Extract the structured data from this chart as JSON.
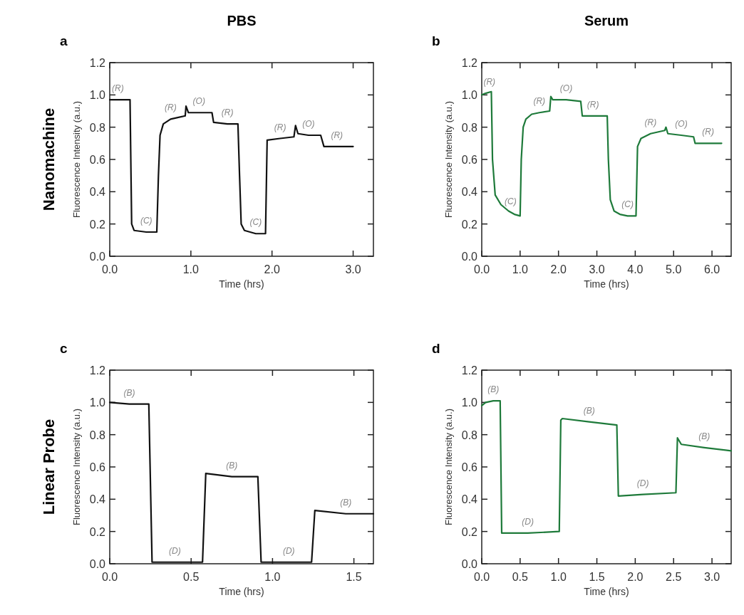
{
  "chart_data": [
    {
      "type": "line",
      "title": "PBS",
      "subtitle": "a",
      "xlabel": "Time (hrs)",
      "ylabel": "Fluorescence Intensity (a.u.)",
      "xlim": [
        0,
        3.25
      ],
      "xticks": [
        {
          "value": 0,
          "label": "0.0"
        },
        {
          "value": 1,
          "label": "1.0"
        },
        {
          "value": 2,
          "label": "2.0"
        },
        {
          "value": 3,
          "label": "3.0"
        }
      ],
      "ylim": [
        0,
        1.2
      ],
      "yticks": [
        {
          "value": 0,
          "label": "0.0"
        },
        {
          "value": 0.2,
          "label": "0.2"
        },
        {
          "value": 0.4,
          "label": "0.4"
        },
        {
          "value": 0.6,
          "label": "0.6"
        },
        {
          "value": 0.8,
          "label": "0.8"
        },
        {
          "value": 1,
          "label": "1.0"
        },
        {
          "value": 1.2,
          "label": "1.2"
        }
      ],
      "series": [
        {
          "color": "#111111",
          "x": [
            0,
            0.1,
            0.25,
            0.27,
            0.3,
            0.45,
            0.58,
            0.6,
            0.62,
            0.66,
            0.75,
            0.93,
            0.94,
            0.97,
            1.1,
            1.26,
            1.28,
            1.45,
            1.58,
            1.6,
            1.62,
            1.66,
            1.8,
            1.92,
            1.94,
            2.1,
            2.27,
            2.29,
            2.32,
            2.45,
            2.6,
            2.64,
            2.8,
            3.0
          ],
          "values": [
            0.97,
            0.97,
            0.97,
            0.2,
            0.16,
            0.15,
            0.15,
            0.5,
            0.75,
            0.82,
            0.85,
            0.87,
            0.93,
            0.89,
            0.89,
            0.89,
            0.83,
            0.82,
            0.82,
            0.5,
            0.2,
            0.16,
            0.14,
            0.14,
            0.72,
            0.73,
            0.74,
            0.81,
            0.76,
            0.75,
            0.75,
            0.68,
            0.68,
            0.68
          ]
        }
      ],
      "annotations": [
        "Nanomachine",
        {
          "text": "(R)",
          "x": 0.1,
          "y": 0.97
        },
        {
          "text": "(C)",
          "x": 0.45,
          "y": 0.15
        },
        {
          "text": "(R)",
          "x": 0.75,
          "y": 0.85
        },
        {
          "text": "(O)",
          "x": 1.1,
          "y": 0.89
        },
        {
          "text": "(R)",
          "x": 1.45,
          "y": 0.82
        },
        {
          "text": "(C)",
          "x": 1.8,
          "y": 0.14
        },
        {
          "text": "(R)",
          "x": 2.1,
          "y": 0.73
        },
        {
          "text": "(O)",
          "x": 2.45,
          "y": 0.75
        },
        {
          "text": "(R)",
          "x": 2.8,
          "y": 0.68
        }
      ]
    },
    {
      "type": "line",
      "title": "Serum",
      "subtitle": "b",
      "xlabel": "Time (hrs)",
      "ylabel": "Fluorescence Intensity (a.u.)",
      "xlim": [
        0,
        6.5
      ],
      "xticks": [
        {
          "value": 0,
          "label": "0.0"
        },
        {
          "value": 1,
          "label": "1.0"
        },
        {
          "value": 2,
          "label": "2.0"
        },
        {
          "value": 3,
          "label": "3.0"
        },
        {
          "value": 4,
          "label": "4.0"
        },
        {
          "value": 5,
          "label": "5.0"
        },
        {
          "value": 6,
          "label": "6.0"
        }
      ],
      "ylim": [
        0,
        1.2
      ],
      "yticks": [
        {
          "value": 0,
          "label": "0.0"
        },
        {
          "value": 0.2,
          "label": "0.2"
        },
        {
          "value": 0.4,
          "label": "0.4"
        },
        {
          "value": 0.6,
          "label": "0.6"
        },
        {
          "value": 0.8,
          "label": "0.8"
        },
        {
          "value": 1,
          "label": "1.0"
        },
        {
          "value": 1.2,
          "label": "1.2"
        }
      ],
      "series": [
        {
          "color": "#1e7a3a",
          "x": [
            0,
            0.1,
            0.25,
            0.28,
            0.35,
            0.5,
            0.7,
            0.85,
            1.0,
            1.03,
            1.08,
            1.15,
            1.3,
            1.5,
            1.77,
            1.8,
            1.85,
            2.2,
            2.58,
            2.62,
            2.9,
            3.27,
            3.3,
            3.35,
            3.45,
            3.6,
            3.8,
            4.02,
            4.06,
            4.15,
            4.4,
            4.77,
            4.8,
            4.85,
            5.2,
            5.52,
            5.56,
            5.9,
            6.25
          ],
          "values": [
            1.0,
            1.01,
            1.02,
            0.6,
            0.38,
            0.32,
            0.28,
            0.26,
            0.25,
            0.6,
            0.8,
            0.85,
            0.88,
            0.89,
            0.9,
            0.99,
            0.97,
            0.97,
            0.96,
            0.87,
            0.87,
            0.87,
            0.6,
            0.35,
            0.28,
            0.26,
            0.25,
            0.25,
            0.68,
            0.73,
            0.76,
            0.78,
            0.8,
            0.76,
            0.75,
            0.74,
            0.7,
            0.7,
            0.7
          ]
        }
      ],
      "annotations": [
        {
          "text": "(R)",
          "x": 0.2,
          "y": 1.01
        },
        {
          "text": "(C)",
          "x": 0.75,
          "y": 0.27
        },
        {
          "text": "(R)",
          "x": 1.5,
          "y": 0.89
        },
        {
          "text": "(O)",
          "x": 2.2,
          "y": 0.97
        },
        {
          "text": "(R)",
          "x": 2.9,
          "y": 0.87
        },
        {
          "text": "(C)",
          "x": 3.8,
          "y": 0.25
        },
        {
          "text": "(R)",
          "x": 4.4,
          "y": 0.76
        },
        {
          "text": "(O)",
          "x": 5.2,
          "y": 0.75
        },
        {
          "text": "(R)",
          "x": 5.9,
          "y": 0.7
        }
      ]
    },
    {
      "type": "line",
      "subtitle": "c",
      "xlabel": "Time (hrs)",
      "ylabel": "Fluorescence Intensity (a.u.)",
      "xlim": [
        0,
        1.62
      ],
      "xticks": [
        {
          "value": 0,
          "label": "0.0"
        },
        {
          "value": 0.5,
          "label": "0.5"
        },
        {
          "value": 1,
          "label": "1.0"
        },
        {
          "value": 1.5,
          "label": "1.5"
        }
      ],
      "ylim": [
        0,
        1.2
      ],
      "yticks": [
        {
          "value": 0,
          "label": "0.0"
        },
        {
          "value": 0.2,
          "label": "0.2"
        },
        {
          "value": 0.4,
          "label": "0.4"
        },
        {
          "value": 0.6,
          "label": "0.6"
        },
        {
          "value": 0.8,
          "label": "0.8"
        },
        {
          "value": 1,
          "label": "1.0"
        },
        {
          "value": 1.2,
          "label": "1.2"
        }
      ],
      "series": [
        {
          "color": "#111111",
          "x": [
            0,
            0.12,
            0.24,
            0.26,
            0.4,
            0.57,
            0.59,
            0.75,
            0.91,
            0.93,
            1.1,
            1.24,
            1.26,
            1.45,
            1.62
          ],
          "values": [
            1.0,
            0.99,
            0.99,
            0.01,
            0.01,
            0.01,
            0.56,
            0.54,
            0.54,
            0.01,
            0.01,
            0.01,
            0.33,
            0.31,
            0.31
          ]
        }
      ],
      "annotations": [
        "Linear Probe",
        {
          "text": "(B)",
          "x": 0.12,
          "y": 0.99
        },
        {
          "text": "(D)",
          "x": 0.4,
          "y": 0.01
        },
        {
          "text": "(B)",
          "x": 0.75,
          "y": 0.54
        },
        {
          "text": "(D)",
          "x": 1.1,
          "y": 0.01
        },
        {
          "text": "(B)",
          "x": 1.45,
          "y": 0.31
        }
      ]
    },
    {
      "type": "line",
      "subtitle": "d",
      "xlabel": "Time (hrs)",
      "ylabel": "Fluorescence Intensity (a.u.)",
      "xlim": [
        0,
        3.25
      ],
      "xticks": [
        {
          "value": 0,
          "label": "0.0"
        },
        {
          "value": 0.5,
          "label": "0.5"
        },
        {
          "value": 1,
          "label": "1.0"
        },
        {
          "value": 1.5,
          "label": "1.5"
        },
        {
          "value": 2,
          "label": "2.0"
        },
        {
          "value": 2.5,
          "label": "2.5"
        },
        {
          "value": 3,
          "label": "3.0"
        }
      ],
      "ylim": [
        0,
        1.2
      ],
      "yticks": [
        {
          "value": 0,
          "label": "0.0"
        },
        {
          "value": 0.2,
          "label": "0.2"
        },
        {
          "value": 0.4,
          "label": "0.4"
        },
        {
          "value": 0.6,
          "label": "0.6"
        },
        {
          "value": 0.8,
          "label": "0.8"
        },
        {
          "value": 1,
          "label": "1.0"
        },
        {
          "value": 1.2,
          "label": "1.2"
        }
      ],
      "series": [
        {
          "color": "#1e7a3a",
          "x": [
            0,
            0.05,
            0.15,
            0.24,
            0.26,
            0.6,
            1.01,
            1.03,
            1.05,
            1.4,
            1.76,
            1.78,
            2.1,
            2.53,
            2.55,
            2.6,
            2.9,
            3.25
          ],
          "values": [
            0.98,
            1.0,
            1.01,
            1.01,
            0.19,
            0.19,
            0.2,
            0.89,
            0.9,
            0.88,
            0.86,
            0.42,
            0.43,
            0.44,
            0.78,
            0.74,
            0.72,
            0.7
          ]
        }
      ],
      "annotations": [
        {
          "text": "(B)",
          "x": 0.15,
          "y": 1.01
        },
        {
          "text": "(D)",
          "x": 0.6,
          "y": 0.19
        },
        {
          "text": "(B)",
          "x": 1.4,
          "y": 0.88
        },
        {
          "text": "(D)",
          "x": 2.1,
          "y": 0.43
        },
        {
          "text": "(B)",
          "x": 2.9,
          "y": 0.72
        }
      ]
    }
  ]
}
